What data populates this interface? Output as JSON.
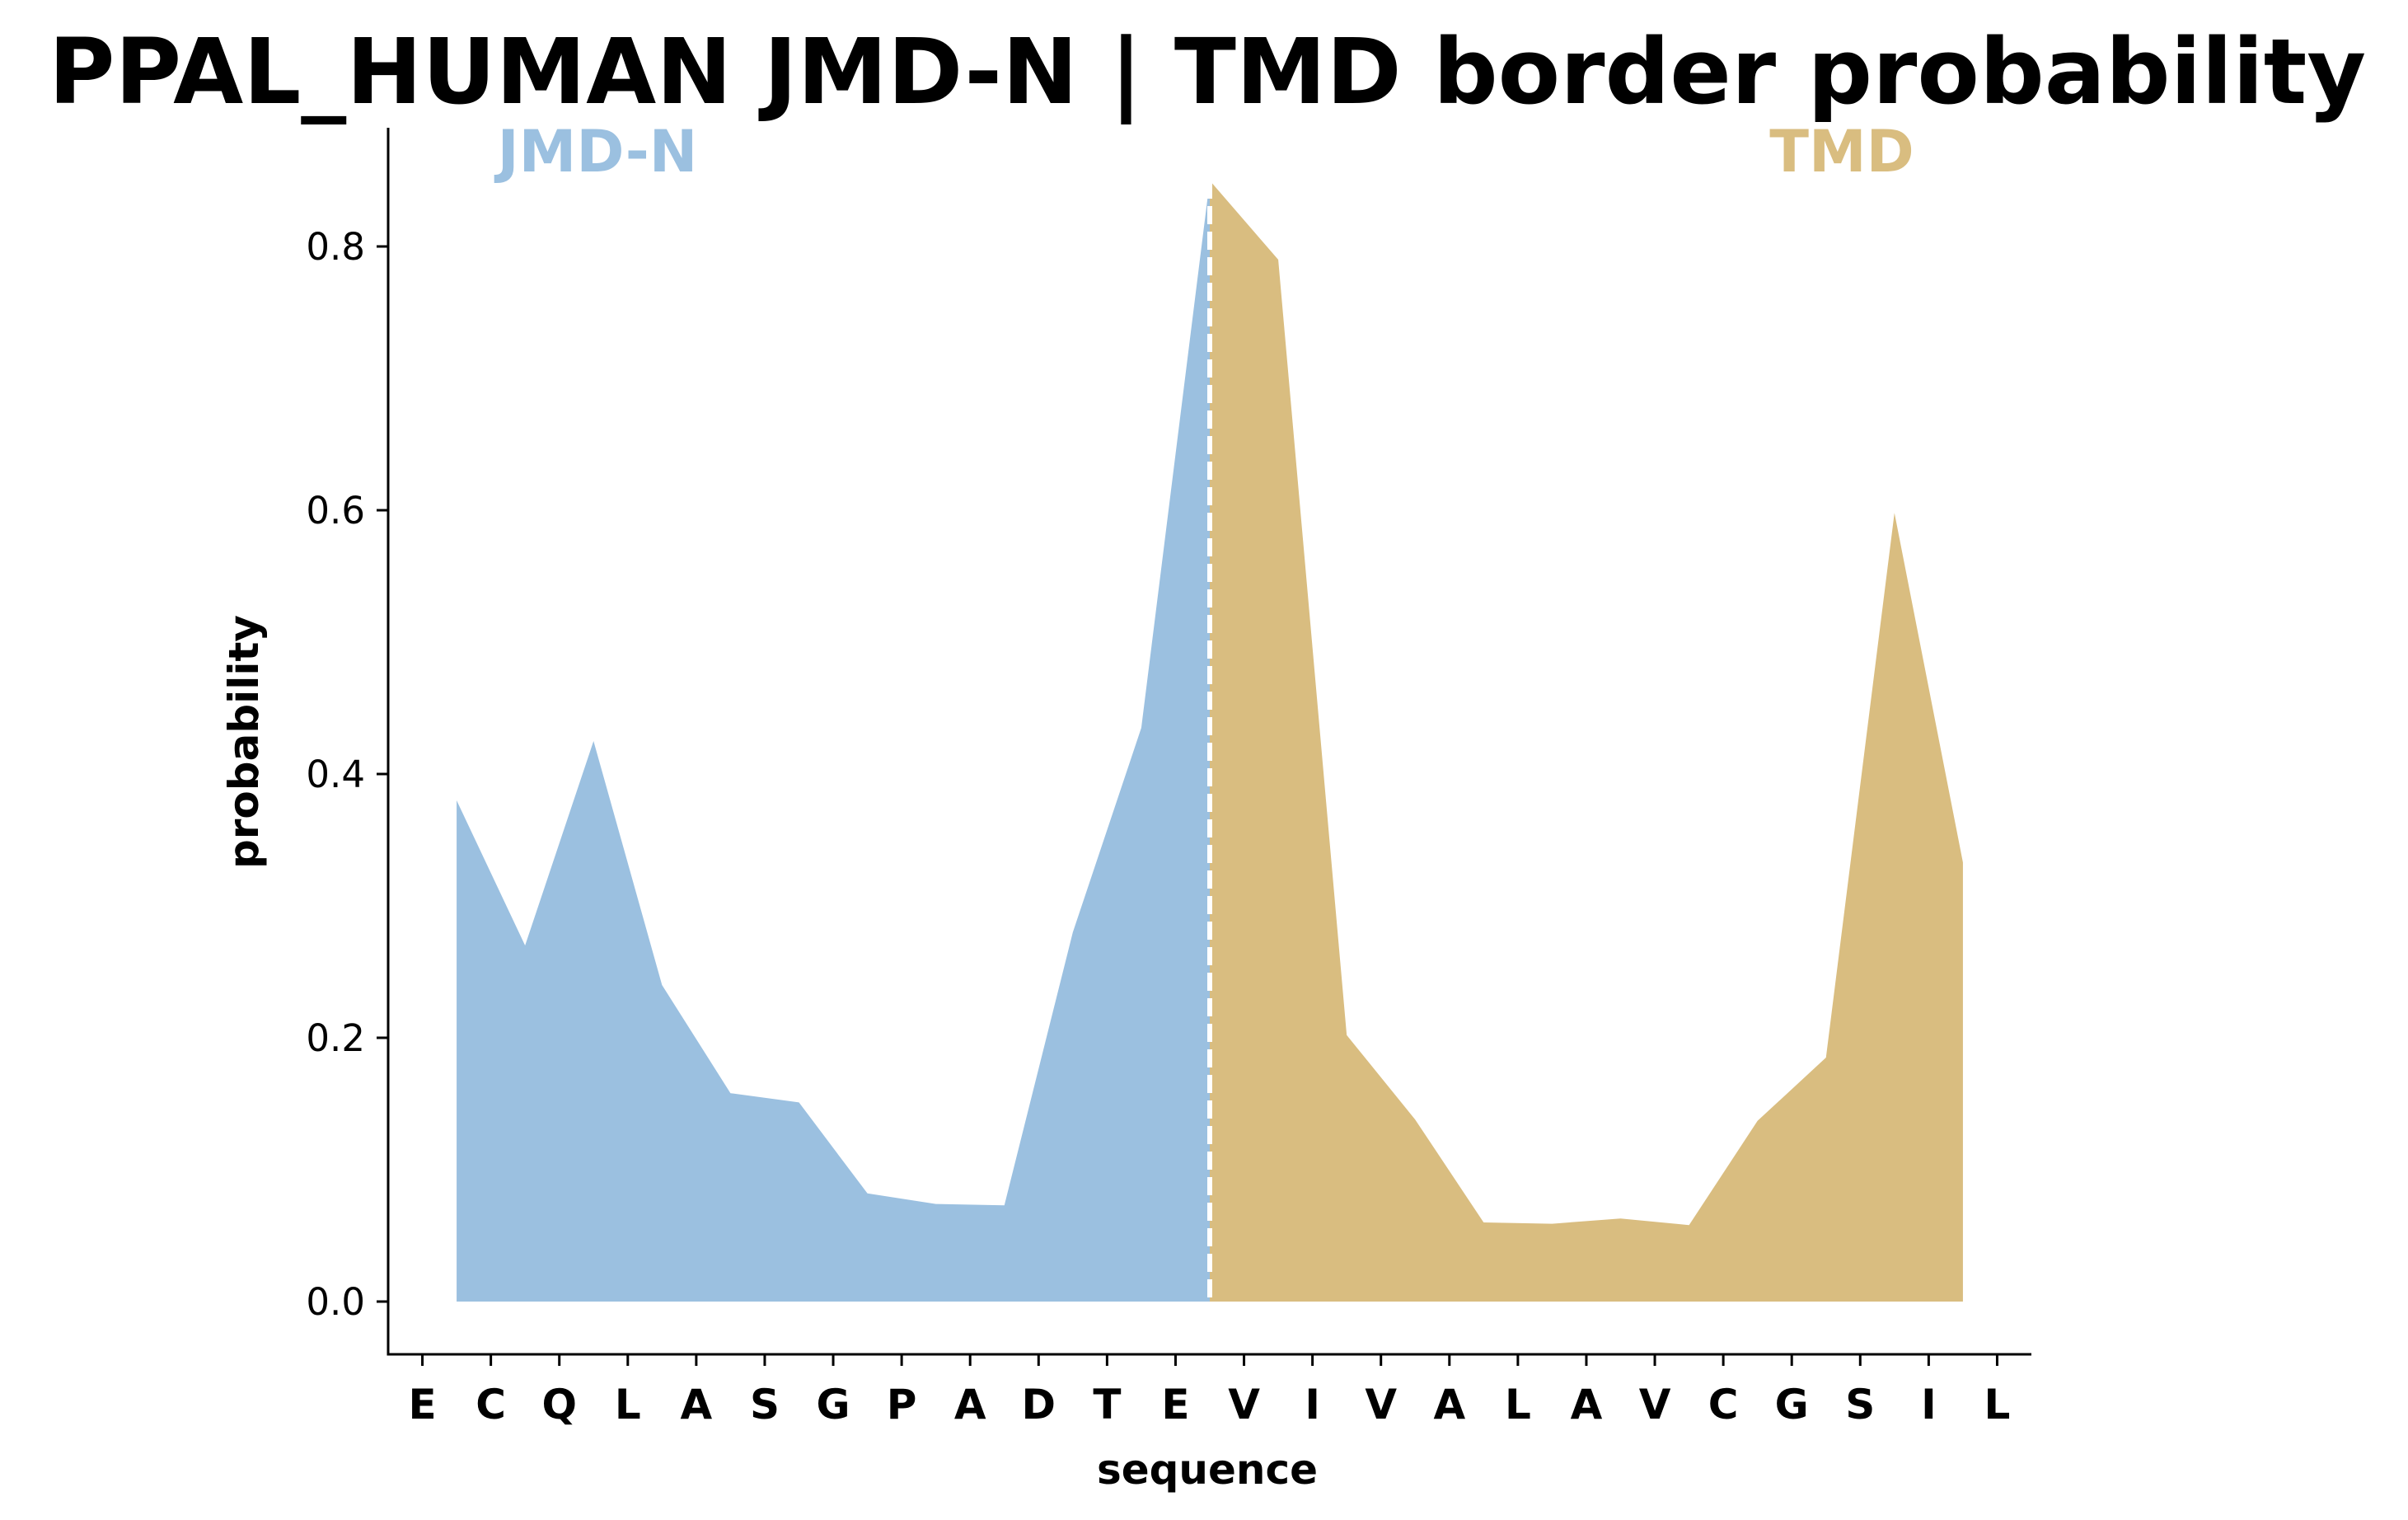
{
  "chart_data": {
    "type": "area",
    "title": "PPAL_HUMAN JMD-N | TMD border probability",
    "xlabel": "sequence",
    "ylabel": "probability",
    "ylim": [
      -0.04,
      0.89
    ],
    "yticks": [
      "0.0",
      "0.2",
      "0.4",
      "0.6",
      "0.8"
    ],
    "ytick_values": [
      0.0,
      0.2,
      0.4,
      0.6,
      0.8
    ],
    "categories": [
      "E",
      "C",
      "Q",
      "L",
      "A",
      "S",
      "G",
      "P",
      "A",
      "D",
      "T",
      "E",
      "V",
      "I",
      "V",
      "A",
      "L",
      "A",
      "V",
      "C",
      "G",
      "S",
      "I",
      "L"
    ],
    "x_range": [
      -0.5,
      23.5
    ],
    "grid": false,
    "border_position": 11.5,
    "border_color": "#ffffff",
    "series": [
      {
        "name": "JMD-N",
        "color": "#9bc0e0",
        "x": [
          0.5,
          1.5,
          2.5,
          3.5,
          4.5,
          5.5,
          6.5,
          7.5,
          8.5,
          9.5,
          10.5,
          11.5
        ],
        "values": [
          0.38,
          0.27,
          0.425,
          0.24,
          0.158,
          0.151,
          0.082,
          0.074,
          0.073,
          0.28,
          0.435,
          0.85
        ]
      },
      {
        "name": "TMD",
        "color": "#d9bd80",
        "x": [
          11.5,
          12.5,
          13.5,
          14.5,
          15.5,
          16.5,
          17.5,
          18.5,
          19.5,
          20.5,
          21.5,
          22.5
        ],
        "values": [
          0.85,
          0.79,
          0.202,
          0.138,
          0.06,
          0.059,
          0.063,
          0.058,
          0.137,
          0.185,
          0.598,
          0.333
        ]
      }
    ]
  }
}
